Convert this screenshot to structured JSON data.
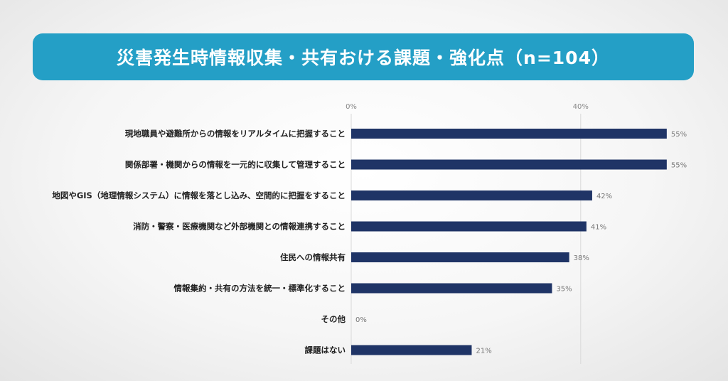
{
  "chart_data": {
    "type": "bar",
    "orientation": "horizontal",
    "title": "災害発生時情報収集・共有おける課題・強化点（n=104）",
    "categories": [
      "現地職員や避難所からの情報をリアルタイムに把握すること",
      "関係部署・機関からの情報を一元的に収集して管理すること",
      "地図やGIS（地理情報システム）に情報を落とし込み、空間的に把握をすること",
      "消防・警察・医療機関など外部機関との情報連携すること",
      "住民への情報共有",
      "情報集約・共有の方法を統一・標準化すること",
      "その他",
      "課題はない"
    ],
    "values": [
      55,
      55,
      42,
      41,
      38,
      35,
      0,
      21
    ],
    "value_labels": [
      "55%",
      "55%",
      "42%",
      "41%",
      "38%",
      "35%",
      "0%",
      "21%"
    ],
    "axis_ticks": [
      0,
      40
    ],
    "axis_tick_labels": [
      "0%",
      "40%"
    ],
    "xlim": [
      0,
      60
    ],
    "grid": true,
    "bar_color": "#1f3466"
  }
}
